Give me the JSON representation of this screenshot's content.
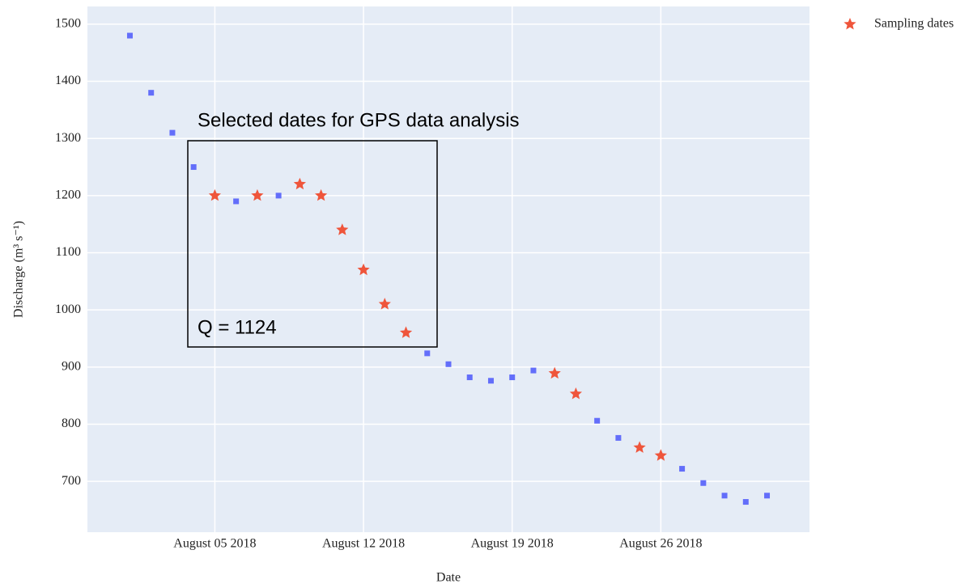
{
  "chart_data": {
    "type": "scatter",
    "x_label": "Date",
    "y_label": "Discharge (m³ s⁻¹)",
    "annotations": [
      "Selected dates for GPS data analysis",
      "Q = 1124"
    ],
    "x": [
      "2018-08-01",
      "2018-08-02",
      "2018-08-03",
      "2018-08-04",
      "2018-08-05",
      "2018-08-06",
      "2018-08-07",
      "2018-08-08",
      "2018-08-09",
      "2018-08-10",
      "2018-08-11",
      "2018-08-12",
      "2018-08-13",
      "2018-08-14",
      "2018-08-15",
      "2018-08-16",
      "2018-08-17",
      "2018-08-18",
      "2018-08-19",
      "2018-08-20",
      "2018-08-21",
      "2018-08-22",
      "2018-08-23",
      "2018-08-24",
      "2018-08-25",
      "2018-08-26",
      "2018-08-27",
      "2018-08-28",
      "2018-08-29",
      "2018-08-30",
      "2018-08-31"
    ],
    "series": [
      {
        "color": "#636efa",
        "marker": "square",
        "values": [
          1480,
          1380,
          1310,
          1250,
          null,
          1190,
          null,
          1200,
          null,
          null,
          null,
          null,
          null,
          null,
          924,
          905,
          882,
          876,
          882,
          894,
          null,
          null,
          806,
          776,
          null,
          null,
          722,
          697,
          675,
          664,
          675
        ]
      },
      {
        "name": "Sampling dates",
        "color": "#ef553b",
        "marker": "star",
        "values": [
          null,
          null,
          null,
          null,
          1200,
          null,
          1200,
          null,
          1220,
          1200,
          1140,
          1070,
          1010,
          960,
          null,
          null,
          null,
          null,
          null,
          null,
          889,
          853,
          null,
          null,
          759,
          745,
          null,
          null,
          null,
          null,
          null
        ]
      }
    ],
    "xlim": [
      "2018-07-30",
      "2018-09-02"
    ],
    "xticks": [
      {
        "value": "2018-08-05",
        "label": "August 05 2018"
      },
      {
        "value": "2018-08-12",
        "label": "August 12 2018"
      },
      {
        "value": "2018-08-19",
        "label": "August 19 2018"
      },
      {
        "value": "2018-08-26",
        "label": "August 26 2018"
      }
    ],
    "ylim": [
      611,
      1531
    ],
    "yticks": [
      700,
      800,
      900,
      1000,
      1100,
      1200,
      1300,
      1400,
      1500
    ],
    "grid": true,
    "legend": "top-right"
  }
}
